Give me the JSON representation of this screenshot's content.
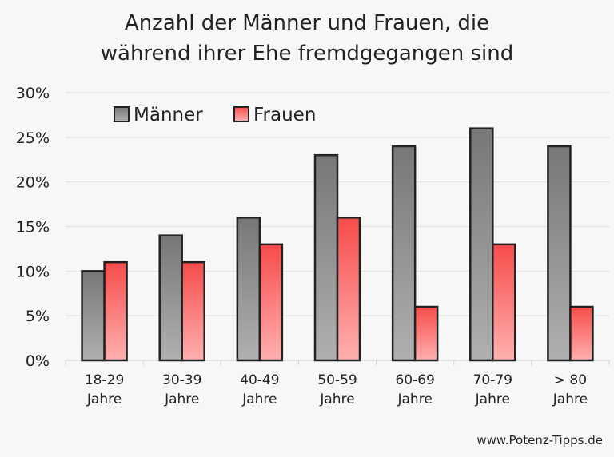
{
  "chart_data": {
    "type": "bar",
    "title_lines": [
      "Anzahl der Männer und Frauen, die",
      "während ihrer Ehe fremdgegangen sind"
    ],
    "categories": [
      [
        "18-29",
        "Jahre"
      ],
      [
        "30-39",
        "Jahre"
      ],
      [
        "40-49",
        "Jahre"
      ],
      [
        "50-59",
        "Jahre"
      ],
      [
        "60-69",
        "Jahre"
      ],
      [
        "70-79",
        "Jahre"
      ],
      [
        "> 80",
        "Jahre"
      ]
    ],
    "series": [
      {
        "name": "Männer",
        "values": [
          10,
          14,
          16,
          23,
          24,
          26,
          24
        ],
        "color_top": "#777777",
        "color_bottom": "#b0b0b0"
      },
      {
        "name": "Frauen",
        "values": [
          11,
          11,
          13,
          16,
          6,
          13,
          6
        ],
        "color_top": "#f64c4a",
        "color_bottom": "#ffb0b0"
      }
    ],
    "yticks": [
      "0%",
      "5%",
      "10%",
      "15%",
      "20%",
      "25%",
      "30%"
    ],
    "ylim": [
      0,
      30
    ],
    "yunit": "%",
    "grid": true,
    "legend": "top-left"
  },
  "footer": "www.Potenz-Tipps.de"
}
